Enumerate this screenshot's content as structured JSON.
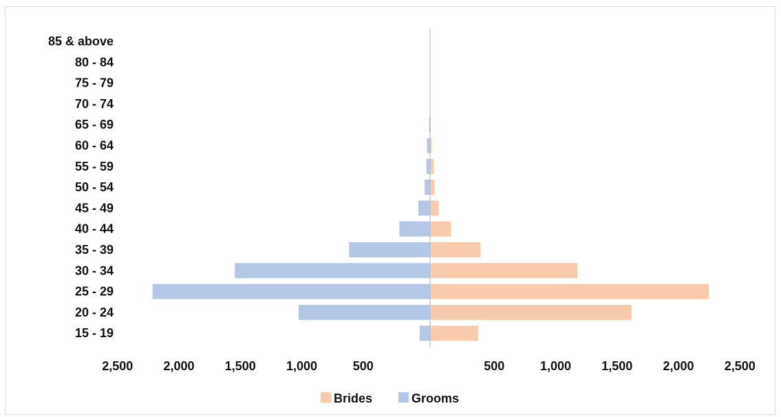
{
  "chart_data": {
    "type": "bar",
    "orientation": "horizontal",
    "subtype": "population-pyramid",
    "title": "",
    "categories": [
      "15 - 19",
      "20 - 24",
      "25 - 29",
      "30 - 34",
      "35 - 39",
      "40 - 44",
      "45 - 49",
      "50 - 54",
      "55 - 59",
      "60 - 64",
      "65 - 69",
      "70 - 74",
      "75 - 79",
      "80 - 84",
      "85 & above"
    ],
    "series": [
      {
        "name": "Brides",
        "side": "right",
        "color": "#f7cbac",
        "values": [
          390,
          1640,
          2270,
          1200,
          410,
          170,
          70,
          35,
          30,
          12,
          6,
          0,
          0,
          0,
          0
        ]
      },
      {
        "name": "Grooms",
        "side": "left",
        "color": "#b4c7e7",
        "values": [
          85,
          1070,
          2260,
          1590,
          660,
          250,
          95,
          45,
          30,
          25,
          8,
          0,
          0,
          0,
          0
        ]
      }
    ],
    "x_tick_labels_left": [
      "2,500",
      "2,000",
      "1,500",
      "1,000",
      "500"
    ],
    "x_tick_labels_right": [
      "500",
      "1,000",
      "1,500",
      "2,000",
      "2,500"
    ],
    "xlim": [
      -2500,
      2500
    ],
    "legend": {
      "position": "bottom",
      "entries": [
        "Brides",
        "Grooms"
      ]
    },
    "grid": false
  }
}
